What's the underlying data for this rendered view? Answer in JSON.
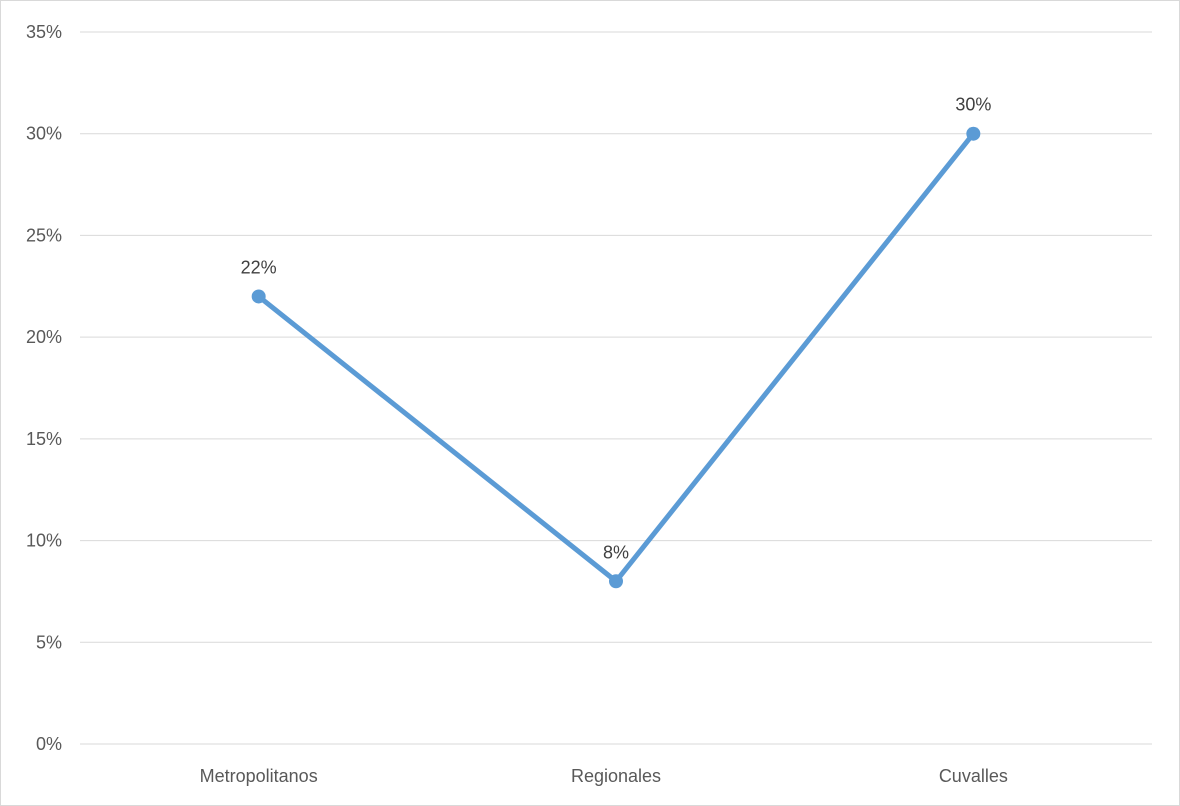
{
  "chart_data": {
    "type": "line",
    "categories": [
      "Metropolitanos",
      "Regionales",
      "Cuvalles"
    ],
    "series": [
      {
        "values": [
          22,
          8,
          30
        ],
        "data_labels": [
          "22%",
          "8%",
          "30%"
        ],
        "color": "#5B9BD5"
      }
    ],
    "ylim": [
      0,
      35
    ],
    "y_ticks": [
      0,
      5,
      10,
      15,
      20,
      25,
      30,
      35
    ],
    "y_tick_labels": [
      "0%",
      "5%",
      "10%",
      "15%",
      "20%",
      "25%",
      "30%",
      "35%"
    ],
    "title": "",
    "xlabel": "",
    "ylabel": "",
    "grid": true,
    "legend": "none"
  }
}
